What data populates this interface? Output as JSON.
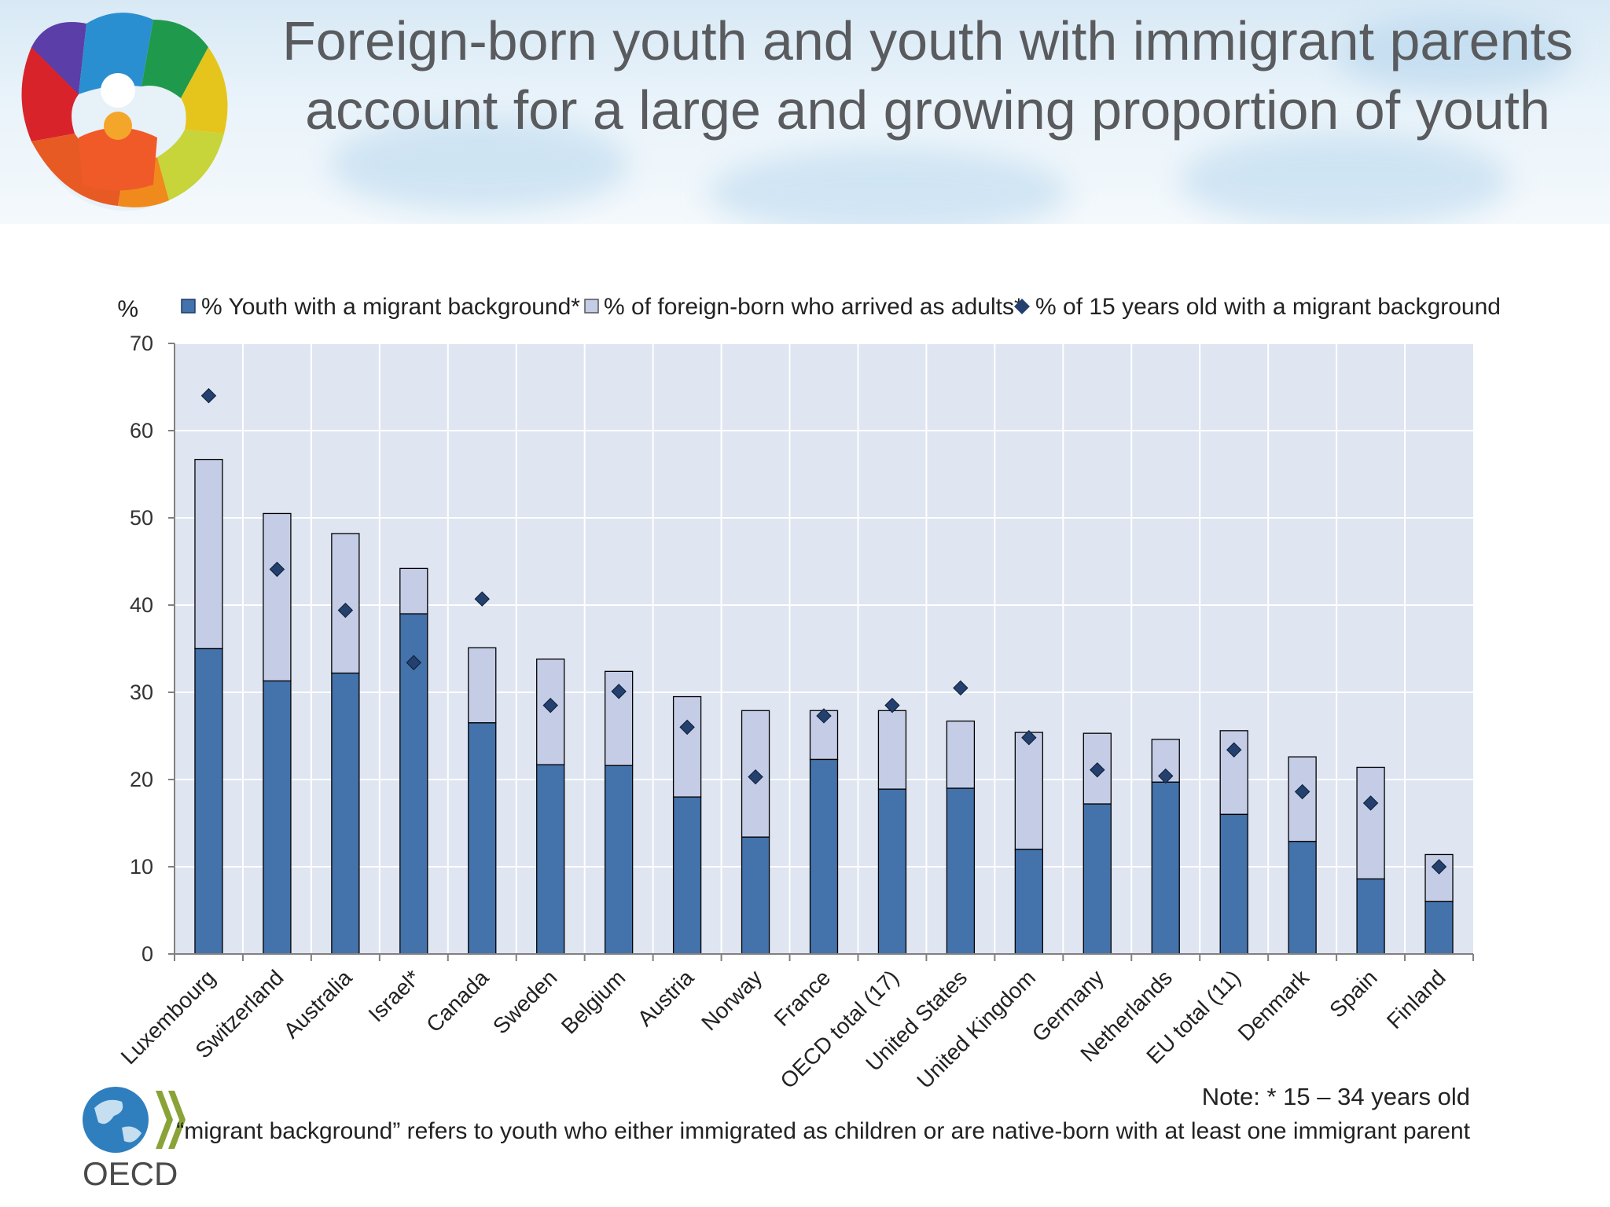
{
  "slide": {
    "title": "Foreign-born youth and youth with immigrant parents account for a large and growing proportion of youth",
    "note_line1": "Note: * 15 – 34 years old",
    "note_line2": "“migrant background” refers to youth who either immigrated as children or are native-born with at least one immigrant parent",
    "logo_text": "OECD"
  },
  "colors": {
    "bar_dark": "#4472aa",
    "bar_light": "#c5cde6",
    "diamond": "#23406e",
    "plot_bg": "#dfe5f1",
    "grid": "#ffffff"
  },
  "chart_data": {
    "type": "bar",
    "stacked": true,
    "y_unit_label": "%",
    "ylim": [
      0,
      70
    ],
    "yticks": [
      0,
      10,
      20,
      30,
      40,
      50,
      60,
      70
    ],
    "grid": true,
    "legend_position": "top",
    "categories": [
      "Luxembourg",
      "Switzerland",
      "Australia",
      "Israel*",
      "Canada",
      "Sweden",
      "Belgium",
      "Austria",
      "Norway",
      "France",
      "OECD total (17)",
      "United States",
      "United Kingdom",
      "Germany",
      "Netherlands",
      "EU total (11)",
      "Denmark",
      "Spain",
      "Finland"
    ],
    "series": [
      {
        "name": "% Youth with a migrant background*",
        "kind": "bar",
        "values": [
          35,
          31.3,
          32.2,
          39,
          26.5,
          21.7,
          21.6,
          18,
          13.4,
          22.3,
          18.9,
          19,
          12,
          17.2,
          19.7,
          16,
          12.9,
          8.6,
          6
        ]
      },
      {
        "name": "% of foreign-born who arrived as adults*",
        "kind": "bar_stacked",
        "values": [
          21.7,
          19.2,
          16,
          5.2,
          8.6,
          12.1,
          10.8,
          11.5,
          14.5,
          5.6,
          9,
          7.7,
          13.4,
          8.1,
          4.9,
          9.6,
          9.7,
          12.8,
          5.4
        ]
      },
      {
        "name": "% of 15 years old with a migrant background",
        "kind": "marker",
        "values": [
          64,
          44.1,
          39.4,
          33.4,
          40.7,
          28.5,
          30.1,
          26,
          20.3,
          27.3,
          28.5,
          30.5,
          24.8,
          21.1,
          20.4,
          23.4,
          18.6,
          17.3,
          10
        ]
      }
    ]
  }
}
